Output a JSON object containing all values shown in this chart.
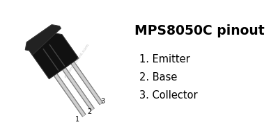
{
  "title": "MPS8050C pinout",
  "pin_labels": [
    "1. Emitter",
    "2. Base",
    "3. Collector"
  ],
  "pin_numbers": [
    "1",
    "2",
    "3"
  ],
  "watermark": "el-component.com",
  "bg_color": "#ffffff",
  "body_color": "#111111",
  "body_side_color": "#2a2a2a",
  "body_top_color": "#1a1a1a",
  "pin_color": "#d0d0d0",
  "pin_dark_color": "#888888",
  "pin_outline_color": "#555555",
  "text_color": "#000000",
  "title_fontsize": 13.5,
  "label_fontsize": 10.5,
  "pin_num_fontsize": 7,
  "watermark_color": "#bbbbbb"
}
